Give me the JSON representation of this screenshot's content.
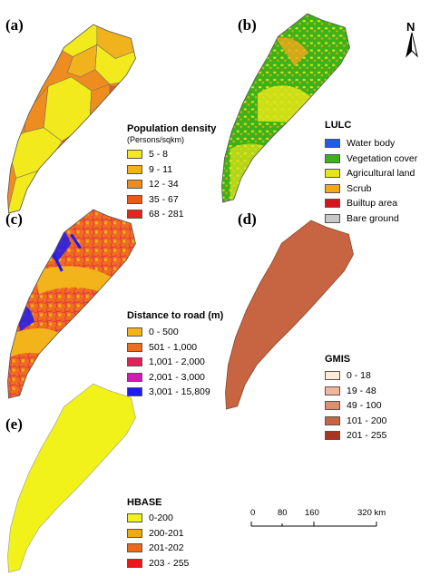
{
  "panels": {
    "a": {
      "label": "(a)",
      "legend_title": "Population density",
      "legend_subtitle": "(Persons/sqkm)",
      "classes": [
        {
          "label": "5 - 8",
          "color": "#f2ea1c"
        },
        {
          "label": "9 - 11",
          "color": "#f0b21d"
        },
        {
          "label": "12 - 34",
          "color": "#ee8c20"
        },
        {
          "label": "35 - 67",
          "color": "#ea5a1d"
        },
        {
          "label": "68 - 281",
          "color": "#e8231c"
        }
      ]
    },
    "b": {
      "label": "(b)",
      "north_label": "N",
      "legend_title": "LULC",
      "classes": [
        {
          "label": "Water body",
          "color": "#1f5de8"
        },
        {
          "label": "Vegetation cover",
          "color": "#3cb219"
        },
        {
          "label": "Agricultural land",
          "color": "#e4e61a"
        },
        {
          "label": "Scrub",
          "color": "#f2a81a"
        },
        {
          "label": "Builtup area",
          "color": "#d8141a"
        },
        {
          "label": "Bare ground",
          "color": "#c8c8c8"
        }
      ]
    },
    "c": {
      "label": "(c)",
      "legend_title": "Distance to road (m)",
      "classes": [
        {
          "label": "0 - 500",
          "color": "#f2b31b"
        },
        {
          "label": "501 - 1,000",
          "color": "#ee6e1d"
        },
        {
          "label": "1,001 - 2,000",
          "color": "#e3205a"
        },
        {
          "label": "2,001 - 3,000",
          "color": "#d21ab4"
        },
        {
          "label": "3,001 - 15,809",
          "color": "#1c1cf0"
        }
      ]
    },
    "d": {
      "label": "(d)",
      "legend_title": "GMIS",
      "classes": [
        {
          "label": "0 - 18",
          "color": "#fbebd6"
        },
        {
          "label": "19 - 48",
          "color": "#f0b69c"
        },
        {
          "label": "49 - 100",
          "color": "#dc8f6e"
        },
        {
          "label": "101 - 200",
          "color": "#c76542"
        },
        {
          "label": "201 - 255",
          "color": "#a8381d"
        }
      ]
    },
    "e": {
      "label": "(e)",
      "legend_title": "HBASE",
      "classes": [
        {
          "label": "0-200",
          "color": "#f2f21b"
        },
        {
          "label": "200-201",
          "color": "#f2a71b"
        },
        {
          "label": "201-202",
          "color": "#ee6a1b"
        },
        {
          "label": "203 - 255",
          "color": "#e8191b"
        }
      ]
    }
  },
  "scale_bar": {
    "ticks": [
      "0",
      "80",
      "160",
      "320 km"
    ]
  }
}
